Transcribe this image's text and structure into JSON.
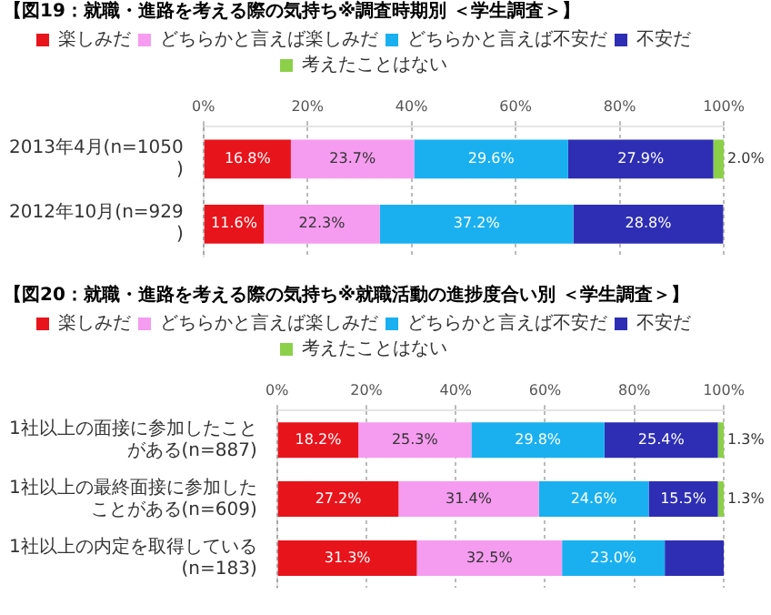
{
  "chart_data": [
    {
      "type": "bar",
      "orientation": "horizontal",
      "stacked": true,
      "title": "【図19：就職・進路を考える際の気持ち※調査時期別 ＜学生調査＞】",
      "categories": [
        "2013年4月(n=1050)",
        "2012年10月(n=929)"
      ],
      "series": [
        {
          "name": "楽しみだ",
          "color": "#e8141c",
          "values": [
            16.8,
            11.6
          ],
          "value_labels": [
            "16.8%",
            "11.6%"
          ]
        },
        {
          "name": "どちらかと言えば楽しみだ",
          "color": "#f59cf0",
          "values": [
            23.7,
            22.3
          ],
          "value_labels": [
            "23.7%",
            "22.3%"
          ]
        },
        {
          "name": "どちらかと言えば不安だ",
          "color": "#1ab0f0",
          "values": [
            29.6,
            37.2
          ],
          "value_labels": [
            "29.6%",
            "37.2%"
          ]
        },
        {
          "name": "不安だ",
          "color": "#2e2eb4",
          "values": [
            27.9,
            28.8
          ],
          "value_labels": [
            "27.9%",
            "28.8%"
          ]
        },
        {
          "name": "考えたことはない",
          "color": "#8cd04a",
          "values": [
            2.0,
            null
          ],
          "value_labels": [
            "2.0%",
            null
          ]
        }
      ],
      "xlim": [
        0,
        100
      ],
      "xticks": [
        {
          "value": 0,
          "label": "0%"
        },
        {
          "value": 20,
          "label": "20%"
        },
        {
          "value": 40,
          "label": "40%"
        },
        {
          "value": 60,
          "label": "60%"
        },
        {
          "value": 80,
          "label": "80%"
        },
        {
          "value": 100,
          "label": "100%"
        }
      ],
      "grid": "x",
      "legend": "top"
    },
    {
      "type": "bar",
      "orientation": "horizontal",
      "stacked": true,
      "title": "【図20：就職・進路を考える際の気持ち※就職活動の進捗度合い別 ＜学生調査＞】",
      "categories": [
        "1社以上の面接に参加したことがある(n=887)",
        "1社以上の最終面接に参加したことがある(n=609)",
        "1社以上の内定を取得している(n=183)"
      ],
      "series": [
        {
          "name": "楽しみだ",
          "color": "#e8141c",
          "values": [
            18.2,
            27.2,
            31.3
          ],
          "value_labels": [
            "18.2%",
            "27.2%",
            "31.3%"
          ]
        },
        {
          "name": "どちらかと言えば楽しみだ",
          "color": "#f59cf0",
          "values": [
            25.3,
            31.4,
            32.5
          ],
          "value_labels": [
            "25.3%",
            "31.4%",
            "32.5%"
          ]
        },
        {
          "name": "どちらかと言えば不安だ",
          "color": "#1ab0f0",
          "values": [
            29.8,
            24.6,
            23.0
          ],
          "value_labels": [
            "29.8%",
            "24.6%",
            "23.0%"
          ]
        },
        {
          "name": "不安だ",
          "color": "#2e2eb4",
          "values": [
            25.4,
            15.5,
            13.2
          ],
          "value_labels": [
            "25.4%",
            "15.5%",
            null
          ]
        },
        {
          "name": "考えたことはない",
          "color": "#8cd04a",
          "values": [
            1.3,
            1.3,
            null
          ],
          "value_labels": [
            "1.3%",
            "1.3%",
            null
          ]
        }
      ],
      "xlim": [
        0,
        100
      ],
      "xticks": [
        {
          "value": 0,
          "label": "0%"
        },
        {
          "value": 20,
          "label": "20%"
        },
        {
          "value": 40,
          "label": "40%"
        },
        {
          "value": 60,
          "label": "60%"
        },
        {
          "value": 80,
          "label": "80%"
        },
        {
          "value": 100,
          "label": "100%"
        }
      ],
      "grid": "x",
      "legend": "top"
    }
  ]
}
